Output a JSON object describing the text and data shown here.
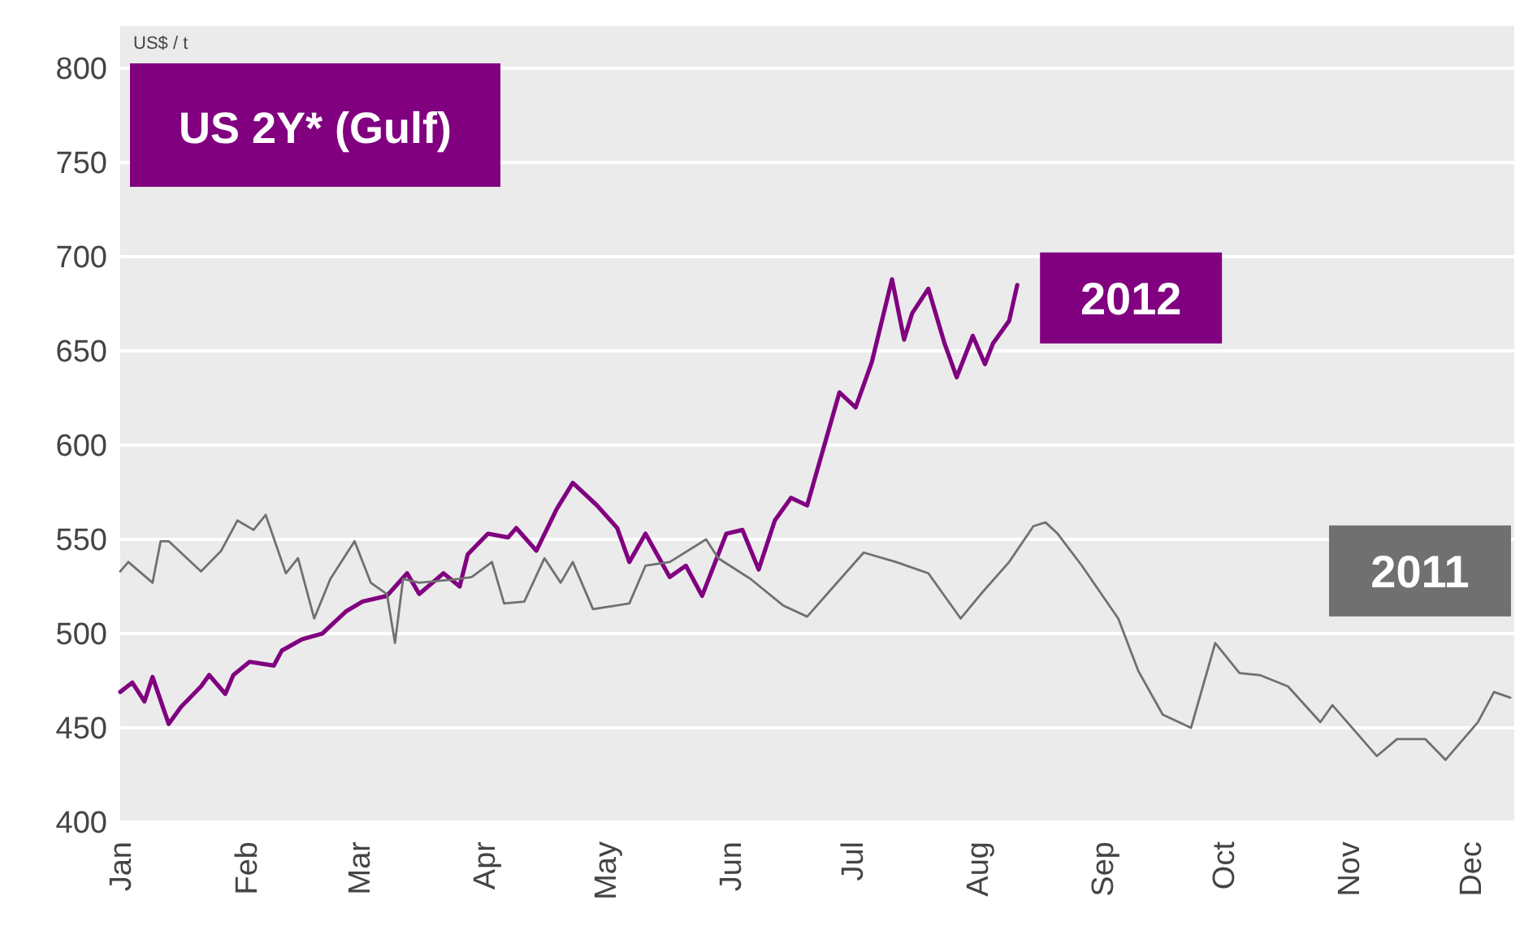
{
  "chart_data": {
    "type": "line",
    "title": "US 2Y* (Gulf)",
    "ylabel": "US$ / t",
    "xlim": [
      "--01-01",
      "--12-12"
    ],
    "xticks": [
      {
        "value": "--01-01",
        "label": "Jan"
      },
      {
        "value": "--02-01",
        "label": "Feb"
      },
      {
        "value": "--03-01",
        "label": "Mar"
      },
      {
        "value": "--04-01",
        "label": "Apr"
      },
      {
        "value": "--05-01",
        "label": "May"
      },
      {
        "value": "--06-01",
        "label": "Jun"
      },
      {
        "value": "--07-01",
        "label": "Jul"
      },
      {
        "value": "--08-01",
        "label": "Aug"
      },
      {
        "value": "--09-01",
        "label": "Sep"
      },
      {
        "value": "--10-01",
        "label": "Oct"
      },
      {
        "value": "--11-01",
        "label": "Nov"
      },
      {
        "value": "--12-01",
        "label": "Dec"
      }
    ],
    "ylim": [
      400,
      800
    ],
    "yticks": [
      400,
      450,
      500,
      550,
      600,
      650,
      700,
      750,
      800
    ],
    "grid": "y",
    "marker": "none",
    "line_style": "solid",
    "series": [
      {
        "name": "2012",
        "color": "#800080",
        "x": [
          "--01-01",
          "--01-04",
          "--01-07",
          "--01-09",
          "--01-13",
          "--01-16",
          "--01-21",
          "--01-23",
          "--01-27",
          "--01-29",
          "--02-02",
          "--02-08",
          "--02-10",
          "--02-15",
          "--02-20",
          "--02-26",
          "--03-02",
          "--03-08",
          "--03-13",
          "--03-16",
          "--03-22",
          "--03-26",
          "--03-28",
          "--04-02",
          "--04-07",
          "--04-09",
          "--04-14",
          "--04-19",
          "--04-23",
          "--04-29",
          "--05-04",
          "--05-07",
          "--05-11",
          "--05-17",
          "--05-21",
          "--05-25",
          "--05-31",
          "--06-04",
          "--06-08",
          "--06-12",
          "--06-16",
          "--06-20",
          "--06-24",
          "--06-28",
          "--07-02",
          "--07-06",
          "--07-11",
          "--07-14",
          "--07-16",
          "--07-20",
          "--07-24",
          "--07-27",
          "--07-31",
          "--08-03",
          "--08-05",
          "--08-09",
          "--08-11"
        ],
        "values": [
          469,
          474,
          464,
          477,
          452,
          461,
          472,
          478,
          468,
          478,
          485,
          483,
          491,
          497,
          500,
          512,
          517,
          520,
          532,
          521,
          532,
          525,
          542,
          553,
          551,
          556,
          544,
          566,
          580,
          568,
          556,
          538,
          553,
          530,
          536,
          520,
          553,
          555,
          534,
          560,
          572,
          568,
          598,
          628,
          620,
          644,
          688,
          656,
          670,
          683,
          654,
          636,
          658,
          643,
          654,
          666,
          685
        ]
      },
      {
        "name": "2011",
        "color": "#707070",
        "x": [
          "--01-01",
          "--01-03",
          "--01-09",
          "--01-11",
          "--01-13",
          "--01-21",
          "--01-26",
          "--01-30",
          "--02-03",
          "--02-06",
          "--02-11",
          "--02-14",
          "--02-18",
          "--02-22",
          "--02-28",
          "--03-04",
          "--03-08",
          "--03-10",
          "--03-12",
          "--03-16",
          "--03-26",
          "--03-29",
          "--04-03",
          "--04-06",
          "--04-11",
          "--04-16",
          "--04-20",
          "--04-23",
          "--04-28",
          "--05-07",
          "--05-11",
          "--05-17",
          "--05-26",
          "--05-29",
          "--06-06",
          "--06-14",
          "--06-20",
          "--07-04",
          "--07-12",
          "--07-20",
          "--07-28",
          "--08-02",
          "--08-09",
          "--08-15",
          "--08-18",
          "--08-21",
          "--08-27",
          "--09-05",
          "--09-10",
          "--09-16",
          "--09-23",
          "--09-29",
          "--10-05",
          "--10-10",
          "--10-17",
          "--10-25",
          "--10-28",
          "--11-08",
          "--11-13",
          "--11-20",
          "--11-25",
          "--12-03",
          "--12-07",
          "--12-11"
        ],
        "values": [
          533,
          538,
          527,
          549,
          549,
          533,
          544,
          560,
          555,
          563,
          532,
          540,
          508,
          529,
          549,
          527,
          521,
          495,
          529,
          527,
          529,
          530,
          538,
          516,
          517,
          540,
          527,
          538,
          513,
          516,
          536,
          538,
          550,
          540,
          529,
          515,
          509,
          543,
          538,
          532,
          508,
          521,
          538,
          557,
          559,
          553,
          536,
          508,
          480,
          457,
          450,
          495,
          479,
          478,
          472,
          453,
          462,
          435,
          444,
          444,
          433,
          453,
          469,
          466
        ]
      }
    ]
  }
}
